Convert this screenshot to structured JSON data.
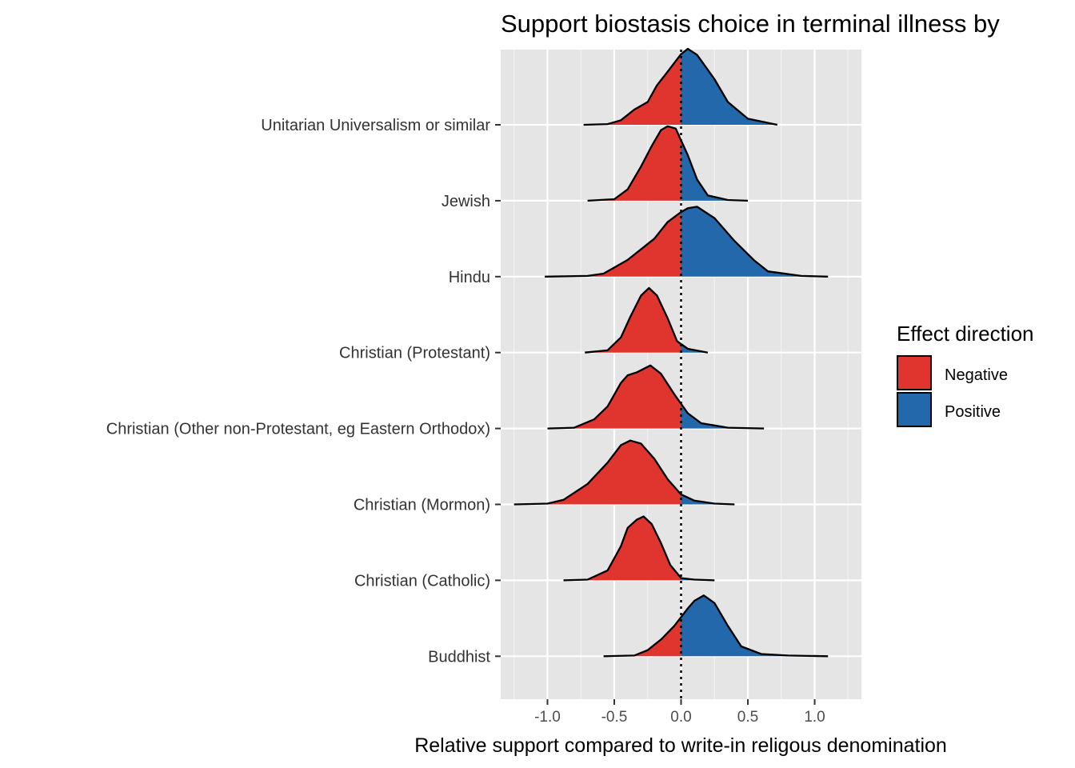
{
  "chart_data": {
    "type": "ridgeline",
    "title": "Support biostasis choice in terminal illness by",
    "xlabel": "Relative support compared to write-in religous denomination",
    "ylabel": "",
    "xlim": [
      -1.35,
      1.35
    ],
    "x_ticks": [
      -1.0,
      -0.5,
      0.0,
      0.5,
      1.0
    ],
    "x_tick_labels": [
      "-1.0",
      "-0.5",
      "0.0",
      "0.5",
      "1.0"
    ],
    "reference_line": 0.0,
    "grid": true,
    "legend": {
      "title": "Effect direction",
      "placement": "right",
      "entries": [
        {
          "label": "Negative",
          "color": "#e0352f"
        },
        {
          "label": "Positive",
          "color": "#2268aa"
        }
      ]
    },
    "categories": [
      "Buddhist",
      "Christian (Catholic)",
      "Christian (Mormon)",
      "Christian (Other non-Protestant, eg Eastern Orthodox)",
      "Christian (Protestant)",
      "Hindu",
      "Jewish",
      "Unitarian Universalism or similar"
    ],
    "series": [
      {
        "category": "Buddhist",
        "points": [
          [
            -0.58,
            0.0
          ],
          [
            -0.35,
            0.01
          ],
          [
            -0.25,
            0.08
          ],
          [
            -0.15,
            0.22
          ],
          [
            -0.05,
            0.4
          ],
          [
            0.05,
            0.63
          ],
          [
            0.1,
            0.73
          ],
          [
            0.17,
            0.8
          ],
          [
            0.25,
            0.7
          ],
          [
            0.35,
            0.4
          ],
          [
            0.45,
            0.13
          ],
          [
            0.6,
            0.03
          ],
          [
            0.8,
            0.01
          ],
          [
            1.1,
            0.0
          ]
        ]
      },
      {
        "category": "Christian (Catholic)",
        "points": [
          [
            -0.88,
            0.0
          ],
          [
            -0.7,
            0.01
          ],
          [
            -0.55,
            0.13
          ],
          [
            -0.45,
            0.45
          ],
          [
            -0.4,
            0.69
          ],
          [
            -0.33,
            0.8
          ],
          [
            -0.28,
            0.84
          ],
          [
            -0.22,
            0.74
          ],
          [
            -0.15,
            0.49
          ],
          [
            -0.08,
            0.2
          ],
          [
            0.0,
            0.03
          ],
          [
            0.1,
            0.01
          ],
          [
            0.25,
            0.0
          ]
        ]
      },
      {
        "category": "Christian (Mormon)",
        "points": [
          [
            -1.25,
            0.0
          ],
          [
            -1.0,
            0.01
          ],
          [
            -0.88,
            0.06
          ],
          [
            -0.7,
            0.27
          ],
          [
            -0.55,
            0.55
          ],
          [
            -0.45,
            0.78
          ],
          [
            -0.38,
            0.84
          ],
          [
            -0.3,
            0.8
          ],
          [
            -0.2,
            0.6
          ],
          [
            -0.1,
            0.33
          ],
          [
            0.0,
            0.13
          ],
          [
            0.1,
            0.05
          ],
          [
            0.25,
            0.01
          ],
          [
            0.4,
            0.0
          ]
        ]
      },
      {
        "category": "Christian (Other non-Protestant, eg Eastern Orthodox)",
        "points": [
          [
            -1.0,
            0.0
          ],
          [
            -0.8,
            0.01
          ],
          [
            -0.65,
            0.12
          ],
          [
            -0.55,
            0.29
          ],
          [
            -0.45,
            0.6
          ],
          [
            -0.4,
            0.7
          ],
          [
            -0.33,
            0.74
          ],
          [
            -0.23,
            0.83
          ],
          [
            -0.15,
            0.72
          ],
          [
            -0.05,
            0.45
          ],
          [
            0.05,
            0.2
          ],
          [
            0.15,
            0.07
          ],
          [
            0.35,
            0.01
          ],
          [
            0.62,
            0.0
          ]
        ]
      },
      {
        "category": "Christian (Protestant)",
        "points": [
          [
            -0.72,
            0.0
          ],
          [
            -0.55,
            0.03
          ],
          [
            -0.45,
            0.2
          ],
          [
            -0.38,
            0.47
          ],
          [
            -0.3,
            0.75
          ],
          [
            -0.24,
            0.85
          ],
          [
            -0.18,
            0.75
          ],
          [
            -0.1,
            0.45
          ],
          [
            -0.03,
            0.15
          ],
          [
            0.05,
            0.05
          ],
          [
            0.2,
            0.0
          ]
        ]
      },
      {
        "category": "Hindu",
        "points": [
          [
            -1.02,
            0.0
          ],
          [
            -0.7,
            0.01
          ],
          [
            -0.58,
            0.04
          ],
          [
            -0.4,
            0.22
          ],
          [
            -0.2,
            0.5
          ],
          [
            -0.1,
            0.72
          ],
          [
            0.0,
            0.85
          ],
          [
            0.05,
            0.9
          ],
          [
            0.12,
            0.92
          ],
          [
            0.25,
            0.77
          ],
          [
            0.4,
            0.47
          ],
          [
            0.55,
            0.21
          ],
          [
            0.65,
            0.07
          ],
          [
            0.9,
            0.01
          ],
          [
            1.1,
            0.0
          ]
        ]
      },
      {
        "category": "Jewish",
        "points": [
          [
            -0.7,
            0.0
          ],
          [
            -0.5,
            0.02
          ],
          [
            -0.4,
            0.15
          ],
          [
            -0.3,
            0.45
          ],
          [
            -0.22,
            0.72
          ],
          [
            -0.15,
            0.93
          ],
          [
            -0.1,
            0.98
          ],
          [
            -0.04,
            0.95
          ],
          [
            0.05,
            0.6
          ],
          [
            0.12,
            0.28
          ],
          [
            0.2,
            0.07
          ],
          [
            0.35,
            0.01
          ],
          [
            0.5,
            0.0
          ]
        ]
      },
      {
        "category": "Unitarian Universalism or similar",
        "points": [
          [
            -0.73,
            0.0
          ],
          [
            -0.55,
            0.01
          ],
          [
            -0.45,
            0.06
          ],
          [
            -0.35,
            0.2
          ],
          [
            -0.25,
            0.3
          ],
          [
            -0.18,
            0.52
          ],
          [
            -0.1,
            0.7
          ],
          [
            0.0,
            0.93
          ],
          [
            0.05,
            1.0
          ],
          [
            0.12,
            0.92
          ],
          [
            0.25,
            0.6
          ],
          [
            0.35,
            0.3
          ],
          [
            0.5,
            0.08
          ],
          [
            0.72,
            0.0
          ]
        ]
      }
    ]
  }
}
